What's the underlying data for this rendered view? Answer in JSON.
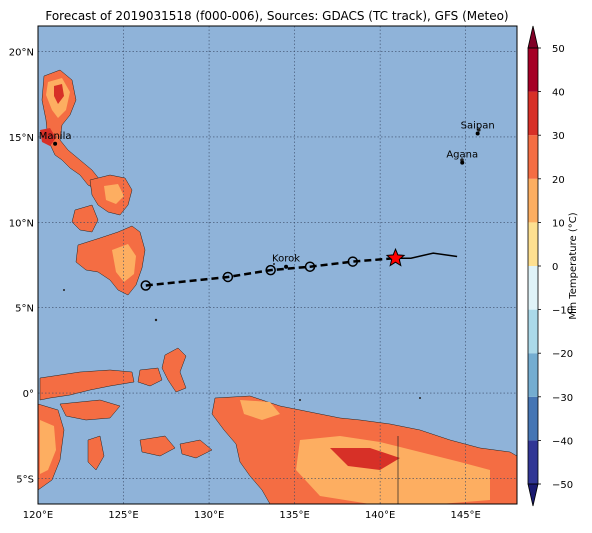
{
  "title": "Forecast of 2019031518 (f000-006), Sources: GDACS (TC track), GFS (Meteo)",
  "map": {
    "lon_range": [
      120,
      148
    ],
    "lat_range": [
      -6.5,
      21.5
    ],
    "lon_ticks": [
      {
        "value": 120,
        "label": "120°E"
      },
      {
        "value": 125,
        "label": "125°E"
      },
      {
        "value": 130,
        "label": "130°E"
      },
      {
        "value": 135,
        "label": "135°E"
      },
      {
        "value": 140,
        "label": "140°E"
      },
      {
        "value": 145,
        "label": "145°E"
      }
    ],
    "lat_ticks": [
      {
        "value": 20,
        "label": "20°N"
      },
      {
        "value": 15,
        "label": "15°N"
      },
      {
        "value": 10,
        "label": "10°N"
      },
      {
        "value": 5,
        "label": "5°N"
      },
      {
        "value": 0,
        "label": "0°"
      },
      {
        "value": -5,
        "label": "5°S"
      }
    ],
    "gridlines": true,
    "ocean_color": "#8fb3d9"
  },
  "cities": [
    {
      "name": "Manila",
      "lon": 121.0,
      "lat": 14.6
    },
    {
      "name": "Saipan",
      "lon": 145.7,
      "lat": 15.2
    },
    {
      "name": "Agana",
      "lon": 144.8,
      "lat": 13.5
    },
    {
      "name": "Korok",
      "lon": 134.5,
      "lat": 7.4
    }
  ],
  "track": {
    "forecast_points": [
      {
        "lon": 126.3,
        "lat": 6.3
      },
      {
        "lon": 131.1,
        "lat": 6.8
      },
      {
        "lon": 133.6,
        "lat": 7.2
      },
      {
        "lon": 135.9,
        "lat": 7.4
      },
      {
        "lon": 138.4,
        "lat": 7.7
      }
    ],
    "current_position": {
      "lon": 140.9,
      "lat": 7.9
    },
    "past_track": [
      {
        "lon": 140.9,
        "lat": 7.9
      },
      {
        "lon": 141.8,
        "lat": 7.9
      },
      {
        "lon": 143.1,
        "lat": 8.2
      },
      {
        "lon": 144.5,
        "lat": 8.0
      }
    ]
  },
  "colorbar": {
    "label": "Min Temperature (°C)",
    "ticks": [
      50,
      40,
      30,
      20,
      10,
      0,
      -10,
      -20,
      -30,
      -40,
      -50
    ],
    "tick_labels": [
      "50",
      "40",
      "30",
      "20",
      "10",
      "0",
      "−10",
      "−20",
      "−30",
      "−40",
      "−50"
    ],
    "colors": [
      "#313695",
      "#4575b4",
      "#74add1",
      "#abd9e9",
      "#e0f3f8",
      "#fee090",
      "#fdae61",
      "#f46d43",
      "#d73027",
      "#a50026"
    ],
    "extend_top_color": "#800026",
    "extend_bottom_color": "#1a1a70"
  }
}
